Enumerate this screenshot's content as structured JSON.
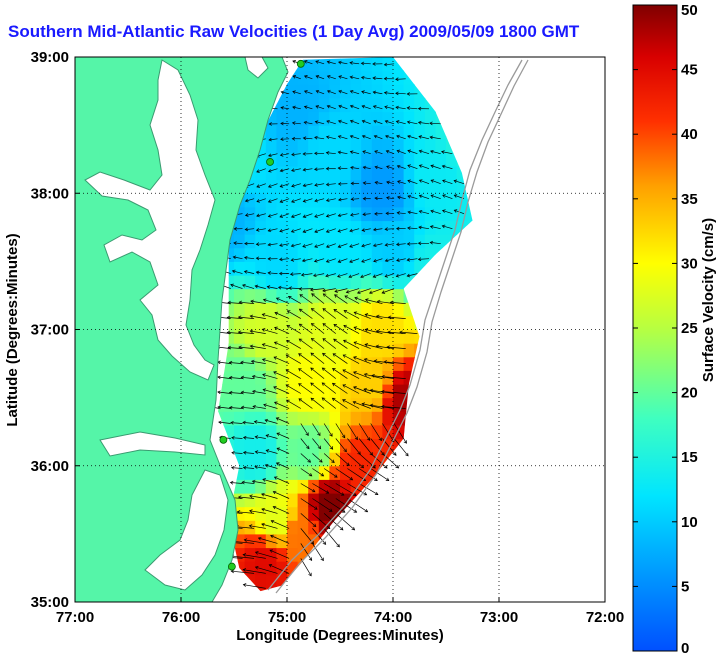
{
  "chart_data": {
    "type": "heatmap",
    "title": "Southern Mid-Atlantic Raw Velocities (1 Day Avg) 2009/05/09 1800 GMT",
    "xlabel": "Longitude (Degrees:Minutes)",
    "ylabel": "Latitude (Degrees:Minutes)",
    "colorbar_label": "Surface Velocity (cm/s)",
    "xlim": [
      -77,
      -72
    ],
    "ylim": [
      35,
      39
    ],
    "clim": [
      0,
      50
    ],
    "x_ticks": [
      {
        "value": -77,
        "label": "77:00"
      },
      {
        "value": -76,
        "label": "76:00"
      },
      {
        "value": -75,
        "label": "75:00"
      },
      {
        "value": -74,
        "label": "74:00"
      },
      {
        "value": -73,
        "label": "73:00"
      },
      {
        "value": -72,
        "label": "72:00"
      }
    ],
    "y_ticks": [
      {
        "value": 35,
        "label": "35:00"
      },
      {
        "value": 36,
        "label": "36:00"
      },
      {
        "value": 37,
        "label": "37:00"
      },
      {
        "value": 38,
        "label": "38:00"
      },
      {
        "value": 39,
        "label": "39:00"
      }
    ],
    "colorbar_ticks": [
      0,
      5,
      10,
      15,
      20,
      25,
      30,
      35,
      40,
      45,
      50
    ],
    "grid": "dotted",
    "colormap": "jet",
    "land_color": "#55f5a8",
    "arrow_color": "#000000",
    "station_color": "#22cc22",
    "stations": [
      {
        "lon": -74.87,
        "lat": 38.95
      },
      {
        "lon": -75.16,
        "lat": 38.23
      },
      {
        "lon": -75.6,
        "lat": 36.19
      },
      {
        "lon": -75.52,
        "lat": 35.26
      }
    ],
    "speed_samples": [
      {
        "lon": -75.5,
        "lat": 38.3,
        "speed": 12
      },
      {
        "lon": -75.6,
        "lat": 37.8,
        "speed": 8
      },
      {
        "lon": -74.9,
        "lat": 38.6,
        "speed": 8
      },
      {
        "lon": -74.6,
        "lat": 38.3,
        "speed": 11
      },
      {
        "lon": -74.1,
        "lat": 38.0,
        "speed": 6
      },
      {
        "lon": -73.6,
        "lat": 38.1,
        "speed": 13
      },
      {
        "lon": -73.3,
        "lat": 38.4,
        "speed": 15
      },
      {
        "lon": -74.5,
        "lat": 37.6,
        "speed": 12
      },
      {
        "lon": -74.0,
        "lat": 37.6,
        "speed": 10
      },
      {
        "lon": -73.6,
        "lat": 37.5,
        "speed": 14
      },
      {
        "lon": -75.1,
        "lat": 37.5,
        "speed": 11
      },
      {
        "lon": -75.2,
        "lat": 37.0,
        "speed": 27
      },
      {
        "lon": -74.6,
        "lat": 37.0,
        "speed": 28
      },
      {
        "lon": -74.1,
        "lat": 37.0,
        "speed": 32
      },
      {
        "lon": -75.4,
        "lat": 36.6,
        "speed": 20
      },
      {
        "lon": -74.8,
        "lat": 36.6,
        "speed": 30
      },
      {
        "lon": -74.2,
        "lat": 36.6,
        "speed": 33
      },
      {
        "lon": -73.9,
        "lat": 36.5,
        "speed": 48
      },
      {
        "lon": -75.3,
        "lat": 36.1,
        "speed": 14
      },
      {
        "lon": -74.8,
        "lat": 36.1,
        "speed": 20
      },
      {
        "lon": -74.3,
        "lat": 36.0,
        "speed": 42
      },
      {
        "lon": -74.9,
        "lat": 35.5,
        "speed": 38
      },
      {
        "lon": -75.1,
        "lat": 35.6,
        "speed": 28
      },
      {
        "lon": -75.2,
        "lat": 35.3,
        "speed": 45
      },
      {
        "lon": -74.6,
        "lat": 35.7,
        "speed": 50
      }
    ]
  }
}
